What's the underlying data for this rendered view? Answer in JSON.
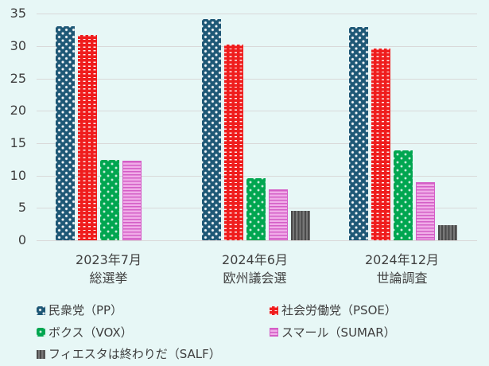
{
  "background_color": "#E7F7F6",
  "chart_data": {
    "type": "bar",
    "title": "",
    "xlabel": "",
    "ylabel": "",
    "ylim": [
      0,
      35
    ],
    "ytick_step": 5,
    "yticks": [
      "0",
      "5",
      "10",
      "15",
      "20",
      "25",
      "30",
      "35"
    ],
    "grid": true,
    "gridline_color": "#D9D9D9",
    "text_color": "#3F3F3F",
    "legend_position": "bottom",
    "legend_columns": 2,
    "categories": [
      {
        "line1": "2023年7月",
        "line2": "総選挙"
      },
      {
        "line1": "2024年6月",
        "line2": "欧州議会選"
      },
      {
        "line1": "2024年12月",
        "line2": "世論調査"
      }
    ],
    "series": [
      {
        "key": "pp",
        "name": "民衆党（PP）",
        "color": "#1E5876",
        "pattern": "white-dots",
        "values": [
          33.1,
          34.2,
          33.0
        ]
      },
      {
        "key": "psoe",
        "name": "社会労働党（PSOE）",
        "color": "#EF1D1D",
        "pattern": "white-dashes",
        "values": [
          31.7,
          30.2,
          29.6
        ]
      },
      {
        "key": "vox",
        "name": "ボクス（VOX）",
        "color": "#00A650",
        "pattern": "light-dots",
        "values": [
          12.4,
          9.6,
          13.9
        ]
      },
      {
        "key": "sumar",
        "name": "スマール（SUMAR）",
        "color": "#F0ACE8",
        "stripe_color": "#D45EC6",
        "pattern": "horizontal-stripes",
        "values": [
          12.3,
          7.9,
          9.0
        ]
      },
      {
        "key": "salf",
        "name": "フィエスタは終わりだ（SALF）",
        "color": "#777777",
        "stripe_color": "#4A4A4A",
        "pattern": "vertical-stripes",
        "values": [
          null,
          4.6,
          2.4
        ]
      }
    ]
  }
}
